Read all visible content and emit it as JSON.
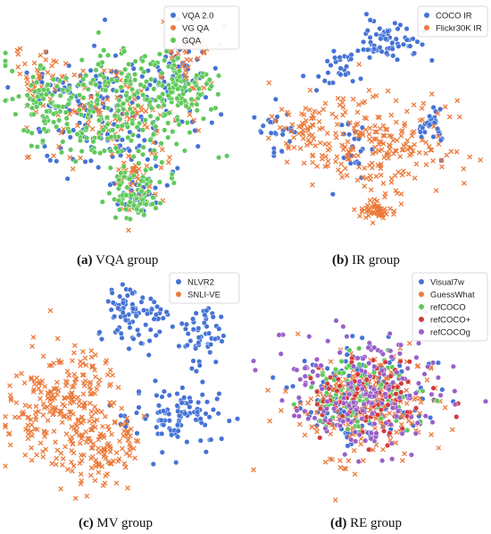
{
  "chart_data": [
    {
      "type": "scatter",
      "panel": "a",
      "caption_letter": "(a)",
      "caption_text": "VQA group",
      "legend_position": "top-right",
      "series": [
        {
          "name": "VQA 2.0",
          "color": "#4472d6",
          "marker": "circle",
          "approx_points": 700
        },
        {
          "name": "VG QA",
          "color": "#ec7a3a",
          "marker": "x",
          "approx_points": 700
        },
        {
          "name": "GQA",
          "color": "#5fc95a",
          "marker": "circle",
          "approx_points": 1300
        }
      ]
    },
    {
      "type": "scatter",
      "panel": "b",
      "caption_letter": "(b)",
      "caption_text": "IR group",
      "legend_position": "top-right",
      "series": [
        {
          "name": "COCO IR",
          "color": "#4472d6",
          "marker": "circle",
          "approx_points": 500
        },
        {
          "name": "Flickr30K IR",
          "color": "#ec7a3a",
          "marker": "x",
          "approx_points": 900
        }
      ]
    },
    {
      "type": "scatter",
      "panel": "c",
      "caption_letter": "(c)",
      "caption_text": "MV group",
      "legend_position": "top-right",
      "series": [
        {
          "name": "NLVR2",
          "color": "#4472d6",
          "marker": "circle",
          "approx_points": 700
        },
        {
          "name": "SNLI-VE",
          "color": "#ec7a3a",
          "marker": "x",
          "approx_points": 1000
        }
      ]
    },
    {
      "type": "scatter",
      "panel": "d",
      "caption_letter": "(d)",
      "caption_text": "RE group",
      "legend_position": "top-right",
      "series": [
        {
          "name": "Visual7w",
          "color": "#4472d6",
          "marker": "circle",
          "approx_points": 500
        },
        {
          "name": "GuessWhat",
          "color": "#ec7a3a",
          "marker": "x",
          "approx_points": 600
        },
        {
          "name": "refCOCO",
          "color": "#5fc95a",
          "marker": "circle",
          "approx_points": 300
        },
        {
          "name": "refCOCO+",
          "color": "#d43a3a",
          "marker": "circle",
          "approx_points": 300
        },
        {
          "name": "refCOCOg",
          "color": "#9b5fc9",
          "marker": "circle",
          "approx_points": 500
        }
      ]
    }
  ]
}
